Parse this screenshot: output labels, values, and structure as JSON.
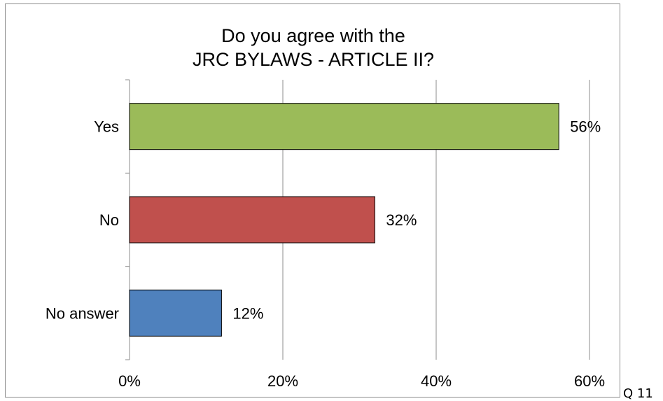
{
  "chart_data": {
    "type": "bar",
    "orientation": "horizontal",
    "title_lines": [
      "Do you agree with the",
      "JRC BYLAWS - ARTICLE II?"
    ],
    "categories": [
      "Yes",
      "No",
      "No answer"
    ],
    "values": [
      56,
      32,
      12
    ],
    "value_labels": [
      "56%",
      "32%",
      "12%"
    ],
    "colors": [
      "#9bbb59",
      "#c0504d",
      "#4f81bd"
    ],
    "xlim": [
      0,
      60
    ],
    "xticks": [
      0,
      20,
      40,
      60
    ],
    "xtick_labels": [
      "0%",
      "20%",
      "40%",
      "60%"
    ],
    "grid": true,
    "legend": "none"
  },
  "page_note": "Q 11"
}
